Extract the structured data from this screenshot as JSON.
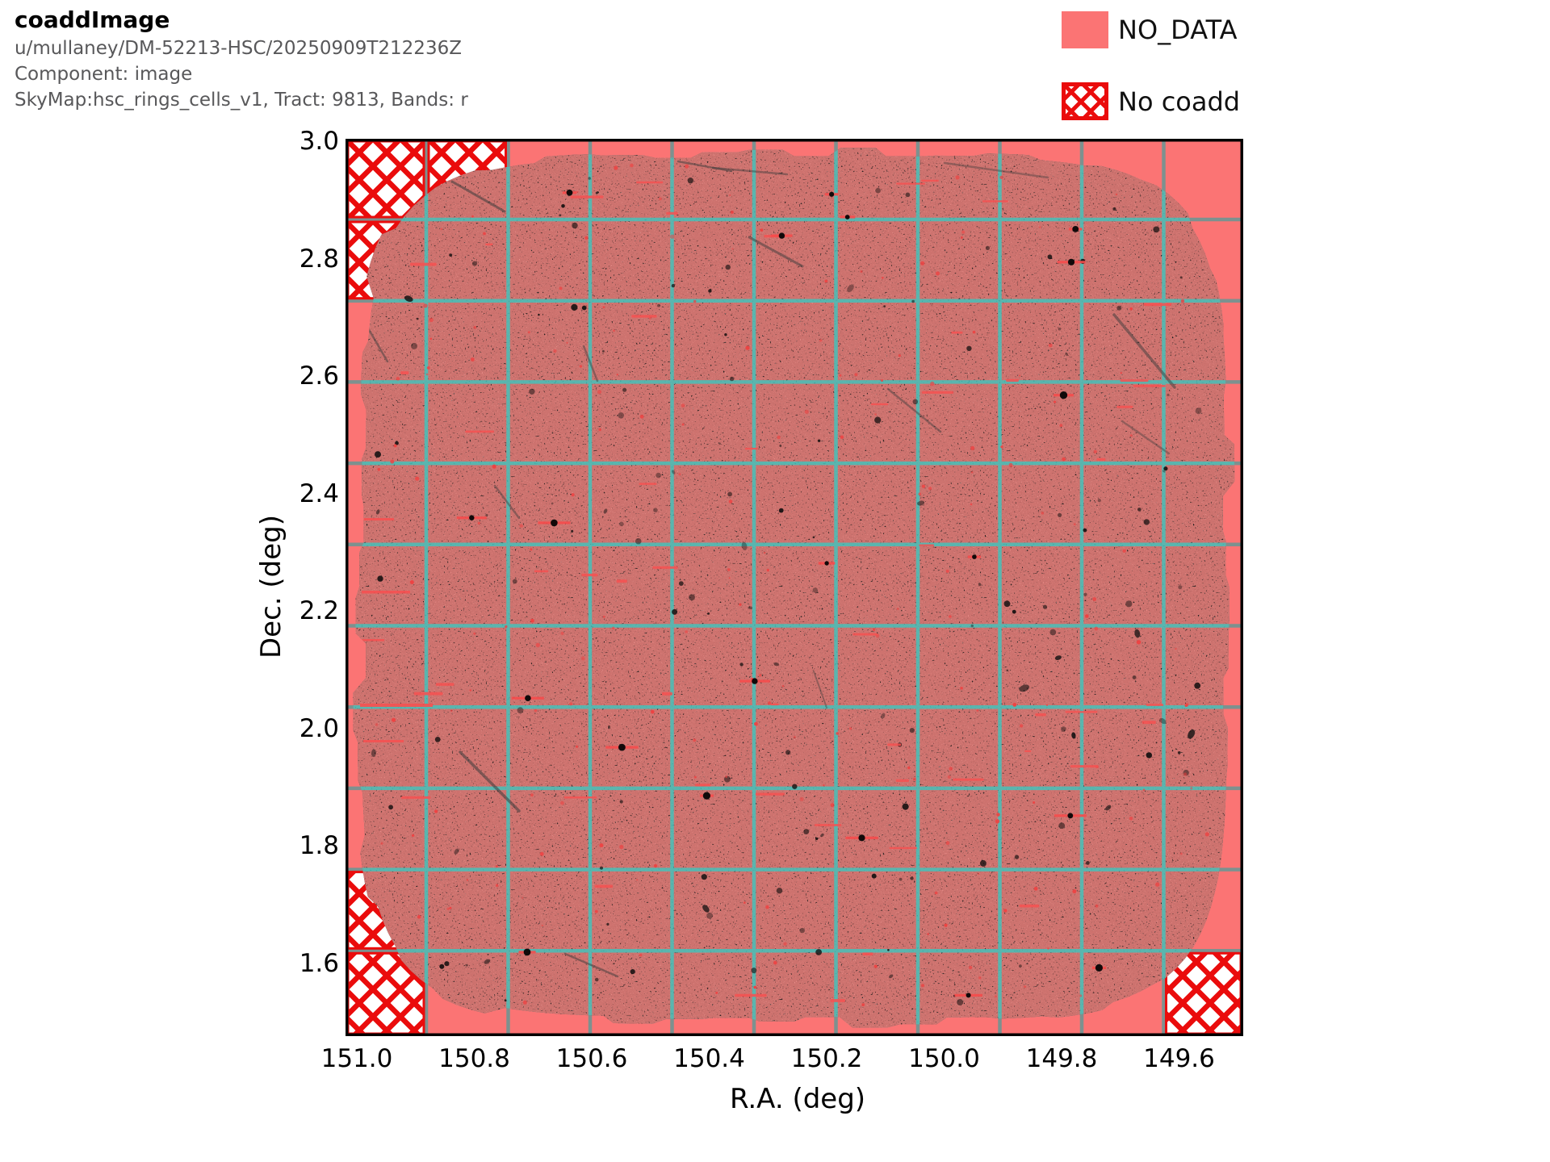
{
  "header": {
    "title": "coaddImage",
    "subtitle_lines": [
      "u/mullaney/DM-52213-HSC/20250909T212236Z",
      "Component: image",
      "SkyMap:hsc_rings_cells_v1, Tract: 9813, Bands: r"
    ]
  },
  "legend": {
    "items": [
      {
        "label": "NO_DATA",
        "style": "filled",
        "color": "#fb7474"
      },
      {
        "label": "No coadd",
        "style": "crosshatch",
        "color": "#ea0c0c"
      }
    ]
  },
  "axes": {
    "xlabel": "R.A. (deg)",
    "ylabel": "Dec. (deg)",
    "x_tick_labels": [
      "151.0",
      "150.8",
      "150.6",
      "150.4",
      "150.2",
      "150.0",
      "149.8",
      "149.6"
    ],
    "y_tick_labels": [
      "3.0",
      "2.8",
      "2.6",
      "2.4",
      "2.2",
      "2.0",
      "1.8",
      "1.6"
    ]
  },
  "chart_data": {
    "type": "heatmap",
    "title": "coaddImage",
    "subtitle": "u/mullaney/DM-52213-HSC/20250909T212236Z, Component: image, SkyMap:hsc_rings_cells_v1, Tract: 9813, Bands: r",
    "xlabel": "R.A. (deg)",
    "ylabel": "Dec. (deg)",
    "x_ticks": [
      151.0,
      150.8,
      150.6,
      150.4,
      150.2,
      150.0,
      149.8,
      149.6
    ],
    "y_ticks": [
      3.0,
      2.8,
      2.6,
      2.4,
      2.2,
      2.0,
      1.8,
      1.6
    ],
    "x_range_deg": [
      151.02,
      149.49
    ],
    "y_range_deg": [
      1.48,
      3.01
    ],
    "x_axis_inverted": true,
    "skymap": "hsc_rings_cells_v1",
    "tract": 9813,
    "bands": "r",
    "patch_grid": {
      "cols": 11,
      "rows": 11
    },
    "no_coadd_patches_col_row": [
      [
        0,
        0
      ],
      [
        1,
        0
      ],
      [
        0,
        1
      ],
      [
        0,
        9
      ],
      [
        0,
        10
      ],
      [
        10,
        10
      ]
    ],
    "data_footprint": {
      "shape": "rounded-square superellipse with ragged edge",
      "center_ra_deg": 150.25,
      "center_dec_deg": 2.24,
      "half_size_deg": 0.745
    },
    "legend_entries": [
      "NO_DATA",
      "No coadd"
    ],
    "colors": {
      "no_data_fill": "#fb7474",
      "no_coadd_hatch": "#ea0c0c",
      "grid_over_data": "#3dc6be",
      "grid_over_no_data": "#7d918f",
      "coadd_base": "#ededed",
      "spine": "#000000"
    },
    "grid": "patch boundaries on, 11x11 cells"
  }
}
